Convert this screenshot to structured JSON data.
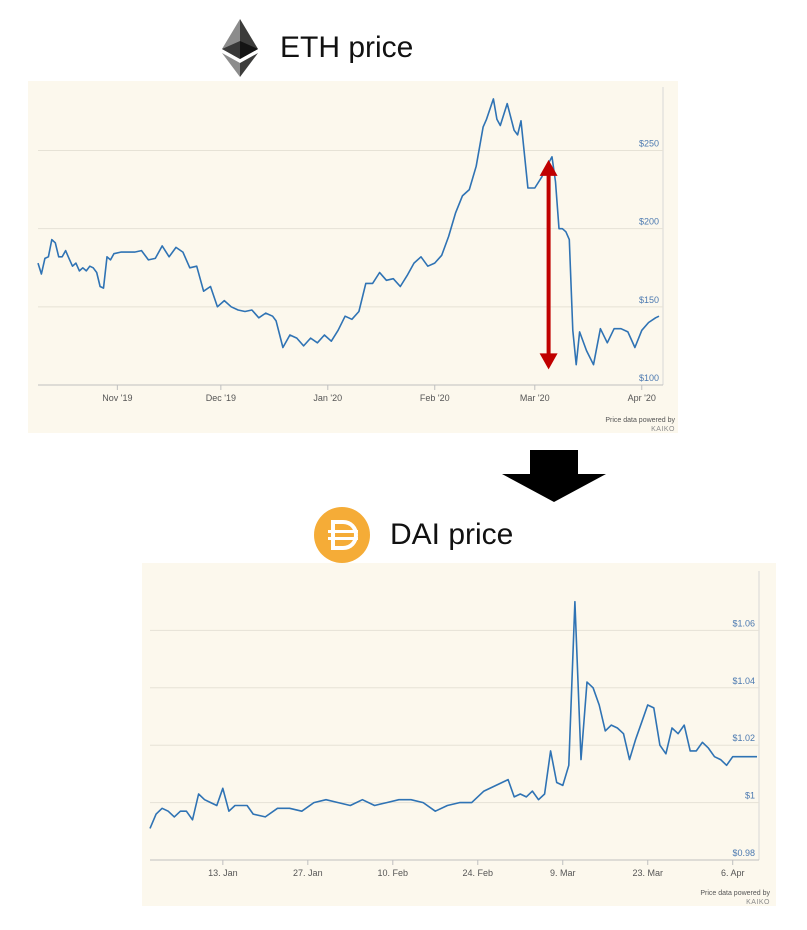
{
  "eth_title": "ETH price",
  "dai_title": "DAI price",
  "icons": {
    "eth": "ethereum-logo-icon",
    "dai": "dai-logo-icon",
    "arrow": "down-arrow-icon"
  },
  "colors": {
    "line": "#2f73b4",
    "panel": "#fcf8ed",
    "red_arrow": "#c00000",
    "dai_logo": "#f5ac37",
    "axis_label": "#4b79b0"
  },
  "chart_data": [
    {
      "type": "line",
      "title": "",
      "ylim": [
        100,
        290
      ],
      "y_ticks": [
        100,
        150,
        200,
        250
      ],
      "y_tick_labels": [
        "$100",
        "$150",
        "$200",
        "$250"
      ],
      "x_tick_dates": [
        "2019-11-01",
        "2019-12-01",
        "2020-01-01",
        "2020-02-01",
        "2020-03-01",
        "2020-04-01"
      ],
      "x_tick_labels": [
        "Nov '19",
        "Dec '19",
        "Jan '20",
        "Feb '20",
        "Mar '20",
        "Apr '20"
      ],
      "x_range": [
        "2019-10-09",
        "2020-04-06"
      ],
      "annotation": {
        "type": "double-arrow",
        "date": "2020-03-05",
        "from": 244,
        "to": 110
      },
      "credit": "Price data powered by",
      "credit_brand": "KAIKO",
      "series": [
        {
          "x": [
            "2019-10-09",
            "2019-10-10",
            "2019-10-11",
            "2019-10-12",
            "2019-10-13",
            "2019-10-14",
            "2019-10-15",
            "2019-10-16",
            "2019-10-17",
            "2019-10-18",
            "2019-10-19",
            "2019-10-20",
            "2019-10-21",
            "2019-10-22",
            "2019-10-23",
            "2019-10-24",
            "2019-10-25",
            "2019-10-26",
            "2019-10-27",
            "2019-10-28",
            "2019-10-29",
            "2019-10-30",
            "2019-10-31",
            "2019-11-02",
            "2019-11-04",
            "2019-11-06",
            "2019-11-08",
            "2019-11-10",
            "2019-11-12",
            "2019-11-14",
            "2019-11-16",
            "2019-11-18",
            "2019-11-20",
            "2019-11-22",
            "2019-11-24",
            "2019-11-26",
            "2019-11-28",
            "2019-11-30",
            "2019-12-02",
            "2019-12-04",
            "2019-12-06",
            "2019-12-08",
            "2019-12-10",
            "2019-12-12",
            "2019-12-14",
            "2019-12-16",
            "2019-12-17",
            "2019-12-19",
            "2019-12-21",
            "2019-12-23",
            "2019-12-25",
            "2019-12-27",
            "2019-12-29",
            "2019-12-31",
            "2020-01-02",
            "2020-01-04",
            "2020-01-06",
            "2020-01-08",
            "2020-01-10",
            "2020-01-12",
            "2020-01-14",
            "2020-01-16",
            "2020-01-18",
            "2020-01-20",
            "2020-01-22",
            "2020-01-24",
            "2020-01-26",
            "2020-01-28",
            "2020-01-30",
            "2020-02-01",
            "2020-02-03",
            "2020-02-05",
            "2020-02-07",
            "2020-02-09",
            "2020-02-11",
            "2020-02-13",
            "2020-02-15",
            "2020-02-16",
            "2020-02-18",
            "2020-02-19",
            "2020-02-20",
            "2020-02-22",
            "2020-02-24",
            "2020-02-25",
            "2020-02-26",
            "2020-02-28",
            "2020-03-01",
            "2020-03-03",
            "2020-03-05",
            "2020-03-06",
            "2020-03-07",
            "2020-03-08",
            "2020-03-09",
            "2020-03-10",
            "2020-03-11",
            "2020-03-12",
            "2020-03-13",
            "2020-03-14",
            "2020-03-16",
            "2020-03-18",
            "2020-03-20",
            "2020-03-22",
            "2020-03-24",
            "2020-03-26",
            "2020-03-28",
            "2020-03-30",
            "2020-04-01",
            "2020-04-03",
            "2020-04-05",
            "2020-04-06"
          ],
          "y": [
            178,
            171,
            181,
            182,
            193,
            191,
            182,
            182,
            186,
            181,
            176,
            178,
            173,
            175,
            173,
            176,
            175,
            172,
            163,
            162,
            182,
            180,
            184,
            185,
            185,
            185,
            186,
            180,
            181,
            189,
            182,
            188,
            185,
            175,
            176,
            160,
            163,
            150,
            154,
            150,
            148,
            147,
            148,
            143,
            146,
            144,
            141,
            124,
            132,
            130,
            125,
            130,
            127,
            132,
            128,
            135,
            144,
            142,
            147,
            165,
            165,
            172,
            167,
            168,
            163,
            170,
            178,
            182,
            176,
            178,
            183,
            195,
            210,
            221,
            225,
            240,
            265,
            270,
            283,
            270,
            266,
            280,
            263,
            260,
            269,
            226,
            226,
            233,
            242,
            246,
            230,
            200,
            200,
            198,
            193,
            135,
            113,
            134,
            122,
            113,
            136,
            127,
            136,
            136,
            134,
            124,
            135,
            140,
            143,
            144
          ]
        }
      ]
    },
    {
      "type": "line",
      "title": "",
      "ylim": [
        0.98,
        1.08
      ],
      "y_ticks": [
        0.98,
        1.0,
        1.02,
        1.04,
        1.06
      ],
      "y_tick_labels": [
        "$0.98",
        "$1",
        "$1.02",
        "$1.04",
        "$1.06"
      ],
      "x_tick_dates": [
        "2020-01-13",
        "2020-01-27",
        "2020-02-10",
        "2020-02-24",
        "2020-03-09",
        "2020-03-23",
        "2020-04-06"
      ],
      "x_tick_labels": [
        "13. Jan",
        "27. Jan",
        "10. Feb",
        "24. Feb",
        "9. Mar",
        "23. Mar",
        "6. Apr"
      ],
      "x_range": [
        "2020-01-01",
        "2020-04-10"
      ],
      "credit": "Price data powered by",
      "credit_brand": "KAIKO",
      "series": [
        {
          "x": [
            "2020-01-01",
            "2020-01-02",
            "2020-01-03",
            "2020-01-04",
            "2020-01-05",
            "2020-01-06",
            "2020-01-07",
            "2020-01-08",
            "2020-01-09",
            "2020-01-10",
            "2020-01-11",
            "2020-01-12",
            "2020-01-13",
            "2020-01-14",
            "2020-01-15",
            "2020-01-16",
            "2020-01-17",
            "2020-01-18",
            "2020-01-20",
            "2020-01-22",
            "2020-01-24",
            "2020-01-26",
            "2020-01-28",
            "2020-01-30",
            "2020-02-01",
            "2020-02-03",
            "2020-02-05",
            "2020-02-07",
            "2020-02-09",
            "2020-02-11",
            "2020-02-13",
            "2020-02-15",
            "2020-02-17",
            "2020-02-19",
            "2020-02-21",
            "2020-02-23",
            "2020-02-25",
            "2020-02-27",
            "2020-02-29",
            "2020-03-01",
            "2020-03-02",
            "2020-03-03",
            "2020-03-04",
            "2020-03-05",
            "2020-03-06",
            "2020-03-07",
            "2020-03-08",
            "2020-03-09",
            "2020-03-10",
            "2020-03-11",
            "2020-03-12",
            "2020-03-13",
            "2020-03-14",
            "2020-03-15",
            "2020-03-16",
            "2020-03-17",
            "2020-03-18",
            "2020-03-19",
            "2020-03-20",
            "2020-03-21",
            "2020-03-22",
            "2020-03-23",
            "2020-03-24",
            "2020-03-25",
            "2020-03-26",
            "2020-03-27",
            "2020-03-28",
            "2020-03-29",
            "2020-03-30",
            "2020-03-31",
            "2020-04-01",
            "2020-04-02",
            "2020-04-03",
            "2020-04-04",
            "2020-04-05",
            "2020-04-06",
            "2020-04-07",
            "2020-04-08",
            "2020-04-09",
            "2020-04-10"
          ],
          "y": [
            0.991,
            0.996,
            0.998,
            0.997,
            0.995,
            0.997,
            0.997,
            0.994,
            1.003,
            1.001,
            1.0,
            0.999,
            1.005,
            0.997,
            0.999,
            0.999,
            0.999,
            0.996,
            0.995,
            0.998,
            0.998,
            0.997,
            1.0,
            1.001,
            1.0,
            0.999,
            1.001,
            0.999,
            1.0,
            1.001,
            1.001,
            1.0,
            0.997,
            0.999,
            1.0,
            1.0,
            1.004,
            1.006,
            1.008,
            1.002,
            1.003,
            1.002,
            1.004,
            1.001,
            1.003,
            1.018,
            1.007,
            1.006,
            1.013,
            1.07,
            1.015,
            1.042,
            1.04,
            1.034,
            1.025,
            1.027,
            1.026,
            1.024,
            1.015,
            1.022,
            1.028,
            1.034,
            1.033,
            1.02,
            1.017,
            1.026,
            1.024,
            1.027,
            1.018,
            1.018,
            1.021,
            1.019,
            1.016,
            1.015,
            1.013,
            1.016,
            1.016,
            1.016,
            1.016,
            1.016
          ]
        }
      ]
    }
  ]
}
